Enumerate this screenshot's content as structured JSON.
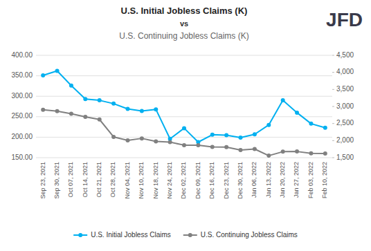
{
  "chart_data": {
    "type": "line",
    "title": "U.S. Initial Jobless Claims (K)",
    "subtitle": "U.S. Continuing Jobless Claims (K)",
    "annotations": [
      "vs",
      "JFD"
    ],
    "categories": [
      "Sep 23, 2021",
      "Sep 30, 2021",
      "Oct 07, 2021",
      "Oct 14, 2021",
      "Oct 21, 2021",
      "Oct 28, 2021",
      "Nov 04, 2021",
      "Nov 10, 2021",
      "Nov 18, 2021",
      "Nov 24, 2021",
      "Dec 02, 2021",
      "Dec 09, 2021",
      "Dec 16, 2021",
      "Dec 23, 2021",
      "Dec 30, 2021",
      "Jan 06, 2022",
      "Jan 13, 2022",
      "Jan 20, 2022",
      "Jan 27, 2022",
      "Feb 03, 2022",
      "Feb 10, 2022"
    ],
    "series": [
      {
        "name": "U.S. Initial Jobless Claims",
        "color": "#00b0f0",
        "marker": "circle",
        "values": [
          351,
          362,
          326,
          293,
          290,
          282,
          269,
          264,
          268,
          196,
          222,
          188,
          206,
          205,
          199,
          207,
          230,
          290,
          260,
          233,
          223
        ]
      },
      {
        "name": "U.S. Continuing Jobless Claims",
        "color": "#808080",
        "marker": "circle",
        "axis": "y2",
        "values": [
          2903,
          2862,
          2786,
          2695,
          2620,
          2109,
          2008,
          2065,
          1975,
          1954,
          1867,
          1867,
          1812,
          1810,
          1724,
          1753,
          1559,
          1675,
          1680,
          1629,
          1621
        ]
      }
    ],
    "ylim": [
      150,
      400
    ],
    "yticks": [
      {
        "value": 150,
        "label": "150.00"
      },
      {
        "value": 200,
        "label": "200.00"
      },
      {
        "value": 250,
        "label": "250.00"
      },
      {
        "value": 300,
        "label": "300.00"
      },
      {
        "value": 350,
        "label": "350.00"
      },
      {
        "value": 400,
        "label": "400.00"
      }
    ],
    "y2lim": [
      1500,
      4500
    ],
    "y2ticks": [
      {
        "value": 1500,
        "label": "1,500"
      },
      {
        "value": 2000,
        "label": "2,000"
      },
      {
        "value": 2500,
        "label": "2,500"
      },
      {
        "value": 3000,
        "label": "3,000"
      },
      {
        "value": 3500,
        "label": "3,500"
      },
      {
        "value": 4000,
        "label": "4,000"
      },
      {
        "value": 4500,
        "label": "4,500"
      }
    ],
    "grid": true,
    "legend": "bottom"
  }
}
